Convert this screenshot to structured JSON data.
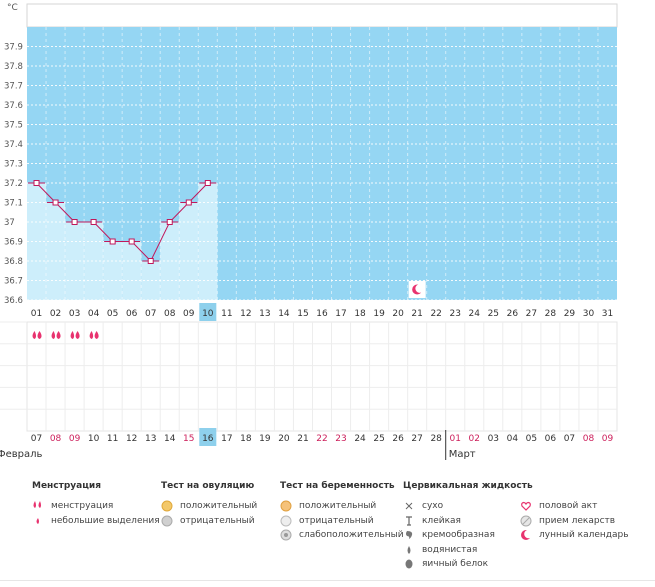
{
  "chart_data": {
    "type": "line",
    "ylabel": "°C",
    "ylim": [
      36.6,
      38.0
    ],
    "yticks": [
      "36.6",
      "36.7",
      "36.8",
      "36.9",
      "37",
      "37.1",
      "37.2",
      "37.3",
      "37.4",
      "37.5",
      "37.6",
      "37.7",
      "37.8",
      "37.9"
    ],
    "cycle_days": [
      "01",
      "02",
      "03",
      "04",
      "05",
      "06",
      "07",
      "08",
      "09",
      "10",
      "11",
      "12",
      "13",
      "14",
      "15",
      "16",
      "17",
      "18",
      "19",
      "20",
      "21",
      "22",
      "23",
      "24",
      "25",
      "26",
      "27",
      "28",
      "29",
      "30",
      "31"
    ],
    "temperatures": [
      37.2,
      37.1,
      37.0,
      37.0,
      36.9,
      36.9,
      36.8,
      37.0,
      37.1,
      37.2
    ],
    "current_day_index": 9,
    "moon_day_index": 20,
    "menstruation_days": [
      0,
      1,
      2,
      3
    ],
    "dates": [
      "07",
      "08",
      "09",
      "10",
      "11",
      "12",
      "13",
      "14",
      "15",
      "16",
      "17",
      "18",
      "19",
      "20",
      "21",
      "22",
      "23",
      "24",
      "25",
      "26",
      "27",
      "28",
      "01",
      "02",
      "03",
      "04",
      "05",
      "06",
      "07",
      "08",
      "09"
    ],
    "date_colors": [
      "#333333",
      "#cc1e5a",
      "#cc1e5a",
      "#333333",
      "#333333",
      "#333333",
      "#333333",
      "#333333",
      "#cc1e5a",
      "#333333",
      "#333333",
      "#333333",
      "#333333",
      "#333333",
      "#333333",
      "#cc1e5a",
      "#cc1e5a",
      "#333333",
      "#333333",
      "#333333",
      "#333333",
      "#333333",
      "#cc1e5a",
      "#cc1e5a",
      "#333333",
      "#333333",
      "#333333",
      "#333333",
      "#333333",
      "#cc1e5a",
      "#cc1e5a"
    ],
    "month_labels": [
      {
        "text": "Февраль",
        "at_index": 0
      },
      {
        "text": "Март",
        "at_index": 22
      }
    ],
    "colors": {
      "plot_bg": "#95d6f3",
      "bar_fill": "#cdeefb",
      "line": "#c1185b",
      "highlight": "#8ed0ec",
      "accent": "#e8336f"
    }
  },
  "legend": [
    {
      "title": "Менструация",
      "items": [
        {
          "icon": "menstruation-icon",
          "label": "менструация"
        },
        {
          "icon": "spotting-icon",
          "label": "небольшие выделения"
        }
      ]
    },
    {
      "title": "Тест на овуляцию",
      "items": [
        {
          "icon": "ovulation-positive-icon",
          "label": "положительный"
        },
        {
          "icon": "ovulation-negative-icon",
          "label": "отрицательный"
        }
      ]
    },
    {
      "title": "Тест на беременность",
      "items": [
        {
          "icon": "pregnancy-positive-icon",
          "label": "положительный"
        },
        {
          "icon": "pregnancy-negative-icon",
          "label": "отрицательный"
        },
        {
          "icon": "pregnancy-weak-icon",
          "label": "слабоположительный"
        }
      ]
    },
    {
      "title": "Цервикальная жидкость",
      "items": [
        {
          "icon": "dry-icon",
          "label": "сухо"
        },
        {
          "icon": "sticky-icon",
          "label": "клейкая"
        },
        {
          "icon": "creamy-icon",
          "label": "кремообразная"
        },
        {
          "icon": "watery-icon",
          "label": "водянистая"
        },
        {
          "icon": "eggwhite-icon",
          "label": "яичный белок"
        }
      ]
    },
    {
      "title": "",
      "items": [
        {
          "icon": "intercourse-icon",
          "label": "половой акт"
        },
        {
          "icon": "medication-icon",
          "label": "прием лекарств"
        },
        {
          "icon": "moon-icon",
          "label": "лунный календарь"
        }
      ]
    }
  ]
}
